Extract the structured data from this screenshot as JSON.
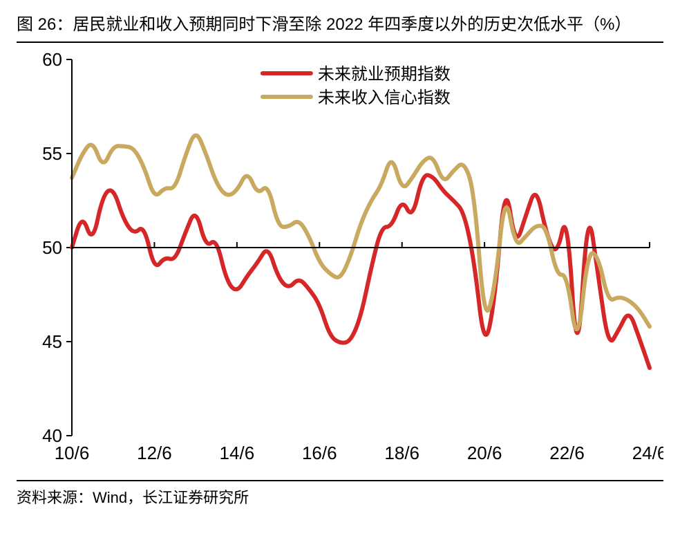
{
  "title": "图 26：居民就业和收入预期同时下滑至除 2022 年四季度以外的历史次低水平（%）",
  "source": "资料来源：Wind，长江证券研究所",
  "chart": {
    "type": "line",
    "background_color": "#ffffff",
    "axis_color": "#000000",
    "tick_color": "#000000",
    "line_width": 6,
    "axis_width": 2,
    "tick_fontsize": 26,
    "legend_fontsize": 24,
    "y": {
      "min": 40,
      "max": 60,
      "ticks": [
        40,
        45,
        50,
        55,
        60
      ]
    },
    "x": {
      "min": 0,
      "max": 56,
      "tick_positions": [
        0,
        8,
        16,
        24,
        32,
        40,
        48,
        56
      ],
      "tick_labels": [
        "10/6",
        "12/6",
        "14/6",
        "16/6",
        "18/6",
        "20/6",
        "22/6",
        "24/6"
      ]
    },
    "legend": {
      "position": "top-center",
      "items": [
        {
          "label": "未来就业预期指数",
          "color": "#d62728"
        },
        {
          "label": "未来收入信心指数",
          "color": "#c9a95f"
        }
      ]
    },
    "series": [
      {
        "name": "未来就业预期指数",
        "color": "#d62728",
        "values": [
          50.0,
          51.8,
          50.2,
          52.8,
          53.2,
          51.5,
          50.7,
          51.2,
          48.8,
          49.5,
          49.3,
          50.8,
          52.1,
          50.0,
          50.5,
          48.2,
          47.6,
          48.5,
          49.2,
          50.1,
          48.4,
          47.8,
          48.4,
          47.8,
          47.0,
          45.3,
          44.9,
          45.0,
          46.3,
          48.9,
          51.1,
          51.1,
          52.6,
          51.5,
          53.9,
          53.8,
          53.0,
          52.5,
          51.9,
          49.3,
          44.5,
          47.2,
          53.7,
          50.0,
          51.7,
          53.3,
          50.7,
          49.5,
          52.1,
          43.2,
          52.4,
          48.6,
          44.7,
          45.6,
          46.7,
          45.2,
          43.6
        ]
      },
      {
        "name": "未来收入信心指数",
        "color": "#c9a95f",
        "values": [
          53.7,
          55.0,
          55.7,
          54.2,
          55.4,
          55.4,
          55.3,
          54.3,
          52.6,
          53.2,
          53.1,
          54.9,
          56.3,
          55.0,
          53.4,
          52.7,
          53.0,
          54.1,
          52.8,
          53.4,
          51.1,
          51.1,
          51.5,
          50.6,
          49.2,
          48.6,
          48.3,
          49.5,
          51.3,
          52.5,
          53.3,
          55.0,
          53.0,
          53.7,
          54.6,
          54.9,
          53.4,
          54.1,
          54.6,
          53.0,
          45.9,
          47.8,
          53.1,
          50.0,
          50.6,
          51.2,
          51.1,
          48.5,
          48.6,
          44.5,
          49.8,
          49.6,
          47.1,
          47.4,
          47.2,
          46.7,
          45.8
        ]
      }
    ]
  }
}
